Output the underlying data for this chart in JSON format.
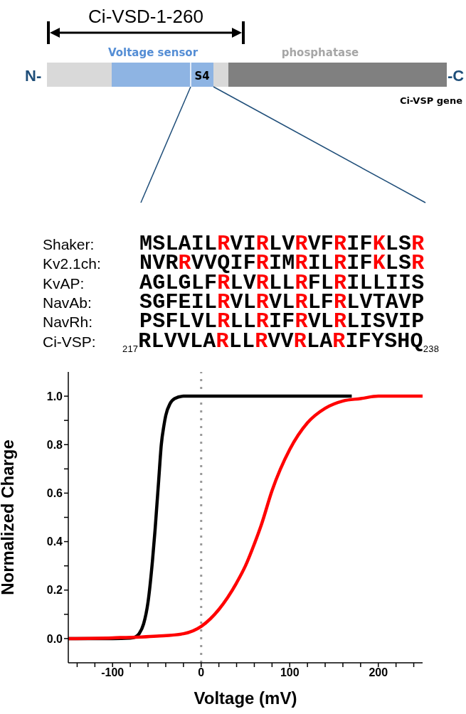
{
  "chart_data": {
    "type": "line",
    "xlabel": "Voltage (mV)",
    "ylabel": "Normalized Charge",
    "annotations": [
      "Ci-VSD-1-260",
      "Voltage sensor",
      "phosphatase",
      "S4",
      "N-",
      "-C",
      "Ci-VSP gene",
      "Shaker:",
      "Kv2.1ch:",
      "KvAP:",
      "NavAb:",
      "NavRh:",
      "Ci-VSP:",
      "MSLAILRVIRLVRVFRIFKLSR",
      "NVRRVVQIFRIMRILRIFKLSR",
      "AGLGLFRLVRLLRFLRILLIIS",
      "SGFEILRVLRVLRLFRLVTAVP",
      "PSFLVLRLLRIFRVLRLISVIP",
      "$_{217}$RLVVLARLLRVVRLARIFYSHQ$_{238}$"
    ],
    "xlim": [
      -150,
      250
    ],
    "xticks": [
      {
        "value": -140,
        "label": null
      },
      {
        "value": -120,
        "label": null
      },
      -100,
      {
        "value": -80,
        "label": null
      },
      {
        "value": -60,
        "label": null
      },
      {
        "value": -40,
        "label": null
      },
      {
        "value": -20,
        "label": null
      },
      0,
      {
        "value": 20,
        "label": null
      },
      {
        "value": 40,
        "label": null
      },
      {
        "value": 60,
        "label": null
      },
      {
        "value": 80,
        "label": null
      },
      100,
      {
        "value": 120,
        "label": null
      },
      {
        "value": 140,
        "label": null
      },
      {
        "value": 160,
        "label": null
      },
      {
        "value": 180,
        "label": null
      },
      200,
      {
        "value": 220,
        "label": null
      },
      {
        "value": 240,
        "label": null
      }
    ],
    "ylim": [
      -0.1,
      1.1
    ],
    "yticks": [
      {
        "value": 0,
        "label": "0.0"
      },
      {
        "value": 0.1,
        "label": null
      },
      {
        "value": 0.2,
        "label": "0.2"
      },
      {
        "value": 0.3,
        "label": null
      },
      {
        "value": 0.4,
        "label": "0.4"
      },
      {
        "value": 0.5,
        "label": null
      },
      {
        "value": 0.6,
        "label": "0.6"
      },
      {
        "value": 0.7,
        "label": null
      },
      {
        "value": 0.8,
        "label": "0.8"
      },
      {
        "value": 0.9,
        "label": null
      },
      {
        "value": 1,
        "label": "1.0"
      }
    ],
    "grid": false,
    "marker": "none",
    "line_style": "solid",
    "ref_lines": [
      {
        "axis": "x",
        "value": 0,
        "color": "#999999",
        "line_style": "dotted"
      }
    ],
    "series": [
      {
        "color": "#000000",
        "x": [
          -150,
          -100,
          -80,
          -75,
          -70,
          -65,
          -60,
          -55,
          -52,
          -50,
          -48,
          -45,
          -42,
          -40,
          -35,
          -30,
          -20,
          0,
          100,
          170
        ],
        "values": [
          0,
          0,
          0.002,
          0.005,
          0.02,
          0.06,
          0.15,
          0.32,
          0.45,
          0.55,
          0.65,
          0.8,
          0.88,
          0.92,
          0.97,
          0.99,
          1,
          1,
          1,
          1
        ]
      },
      {
        "color": "#ff0000",
        "x": [
          -150,
          -100,
          -50,
          -20,
          0,
          20,
          30,
          40,
          50,
          60,
          68,
          80,
          100,
          120,
          140,
          160,
          180,
          200,
          250
        ],
        "values": [
          0,
          0.003,
          0.01,
          0.02,
          0.05,
          0.12,
          0.17,
          0.23,
          0.3,
          0.39,
          0.47,
          0.61,
          0.78,
          0.89,
          0.95,
          0.98,
          0.99,
          1,
          1
        ]
      }
    ]
  }
}
